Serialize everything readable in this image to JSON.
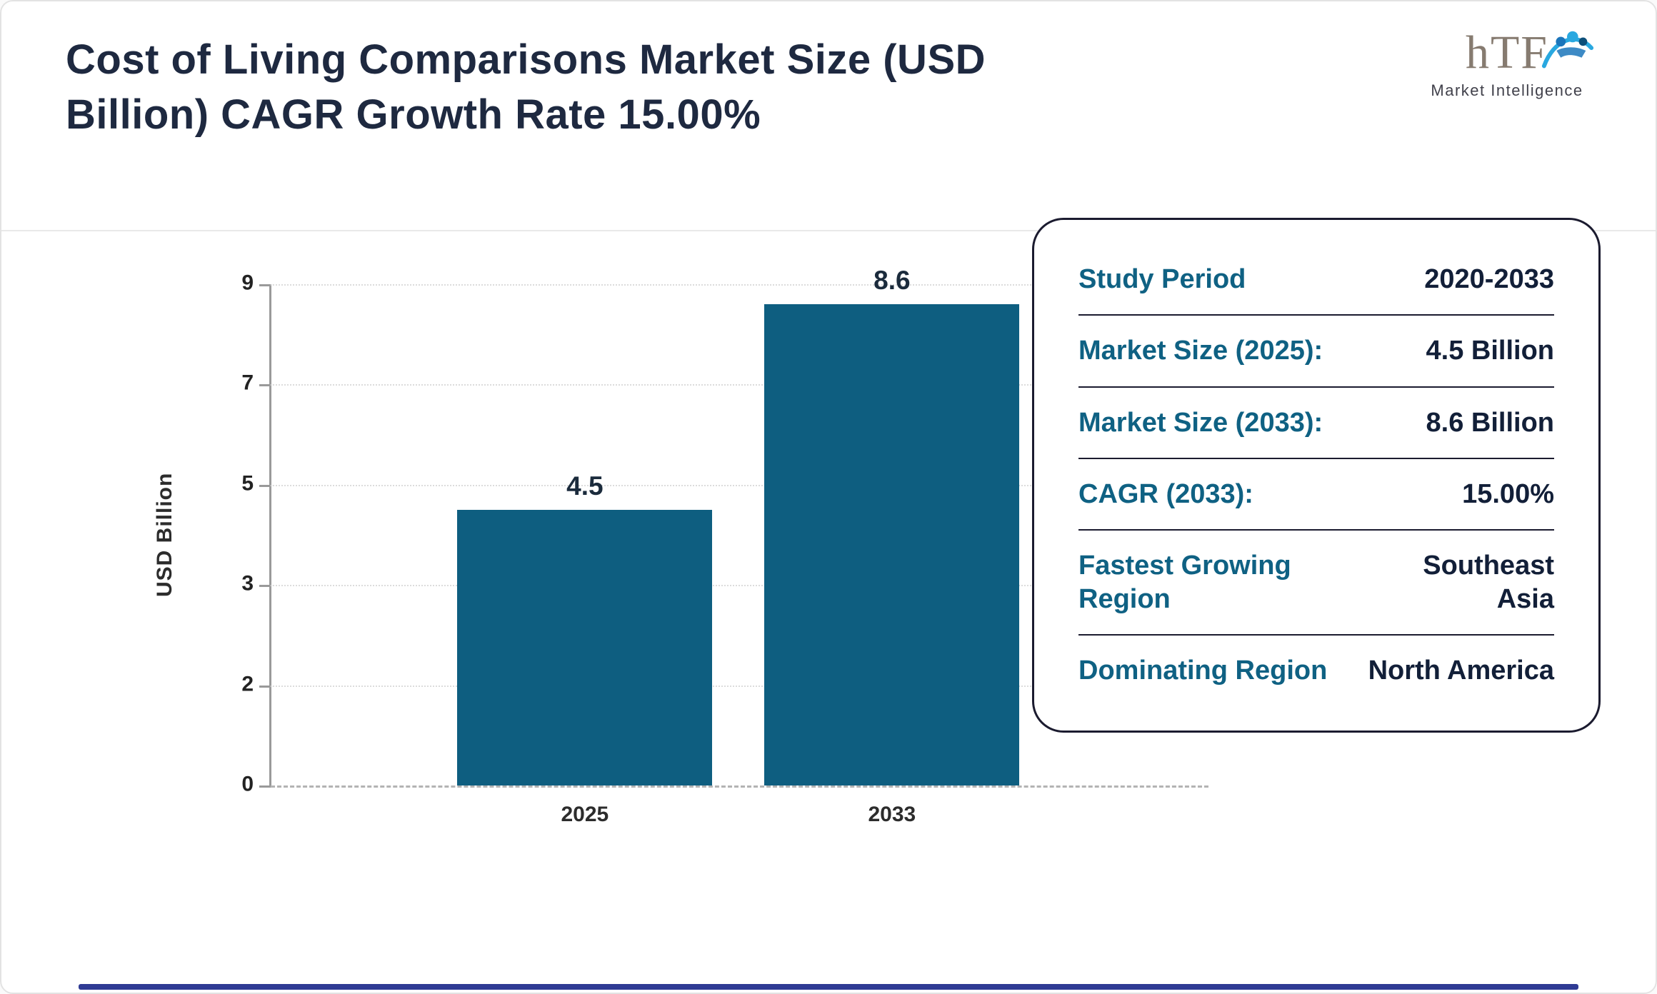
{
  "page": {
    "title": "Cost of Living Comparisons Market Size (USD Billion) CAGR Growth Rate 15.00%",
    "logo": {
      "text": "hTF",
      "subtext": "Market Intelligence"
    }
  },
  "chart_data": {
    "type": "bar",
    "categories": [
      "2025",
      "2033"
    ],
    "values": [
      4.5,
      8.6
    ],
    "value_labels": [
      "4.5",
      "8.6"
    ],
    "title": "",
    "xlabel": "",
    "ylabel": "USD Billion",
    "yticks": [
      0,
      2,
      3,
      5,
      7,
      9
    ],
    "ylim": [
      0,
      9
    ],
    "bar_color": "#0e5e80",
    "grid": true,
    "legend": false
  },
  "summary_card": {
    "rows": [
      {
        "label": "Study Period",
        "value": "2020-2033"
      },
      {
        "label": "Market Size (2025):",
        "value": "4.5 Billion"
      },
      {
        "label": "Market Size (2033):",
        "value": "8.6 Billion"
      },
      {
        "label": "CAGR (2033):",
        "value": "15.00%"
      },
      {
        "label": "Fastest Growing Region",
        "value": "Southeast Asia"
      },
      {
        "label": "Dominating Region",
        "value": "North America"
      }
    ]
  },
  "colors": {
    "bar": "#0e5e80",
    "label_teal": "#0f6183",
    "value_navy": "#121f38",
    "title_navy": "#1e2940",
    "footer_blue": "#2f3b94",
    "logo_blue": "#29a8e0"
  }
}
